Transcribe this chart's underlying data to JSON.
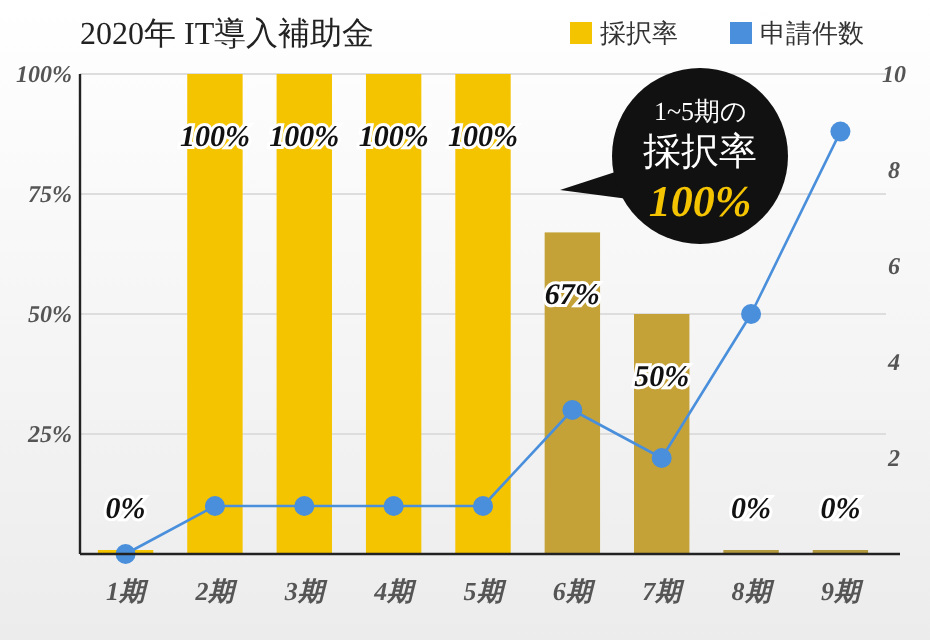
{
  "chart_data": {
    "type": "bar",
    "title": "2020年 IT導入補助金",
    "categories": [
      "1期",
      "2期",
      "3期",
      "4期",
      "5期",
      "6期",
      "7期",
      "8期",
      "9期"
    ],
    "series": [
      {
        "name": "採択率",
        "color": "#f5c400",
        "colors": [
          "#f5c400",
          "#f5c400",
          "#f5c400",
          "#f5c400",
          "#f5c400",
          "#c4a238",
          "#c4a238",
          "#b39a3e",
          "#b39a3e"
        ],
        "values": [
          0,
          100,
          100,
          100,
          100,
          67,
          50,
          0,
          0
        ],
        "value_labels": [
          "0%",
          "100%",
          "100%",
          "100%",
          "100%",
          "67%",
          "50%",
          "0%",
          "0%"
        ]
      },
      {
        "name": "申請件数",
        "type": "line",
        "axis": "y2",
        "color": "#4a8fdb",
        "values": [
          0,
          1,
          1,
          1,
          1,
          3,
          2,
          5,
          8.8
        ]
      }
    ],
    "ylim": [
      0,
      100
    ],
    "yticks": [
      {
        "value": 25,
        "label": "25%"
      },
      {
        "value": 50,
        "label": "50%"
      },
      {
        "value": 75,
        "label": "75%"
      },
      {
        "value": 100,
        "label": "100%"
      }
    ],
    "y2lim": [
      0,
      10
    ],
    "y2ticks": [
      2,
      4,
      6,
      8,
      10
    ],
    "grid": "y",
    "legend": "top right",
    "marker": "circle",
    "annotations": [
      "1~5期の",
      "採択率",
      "100%"
    ]
  }
}
